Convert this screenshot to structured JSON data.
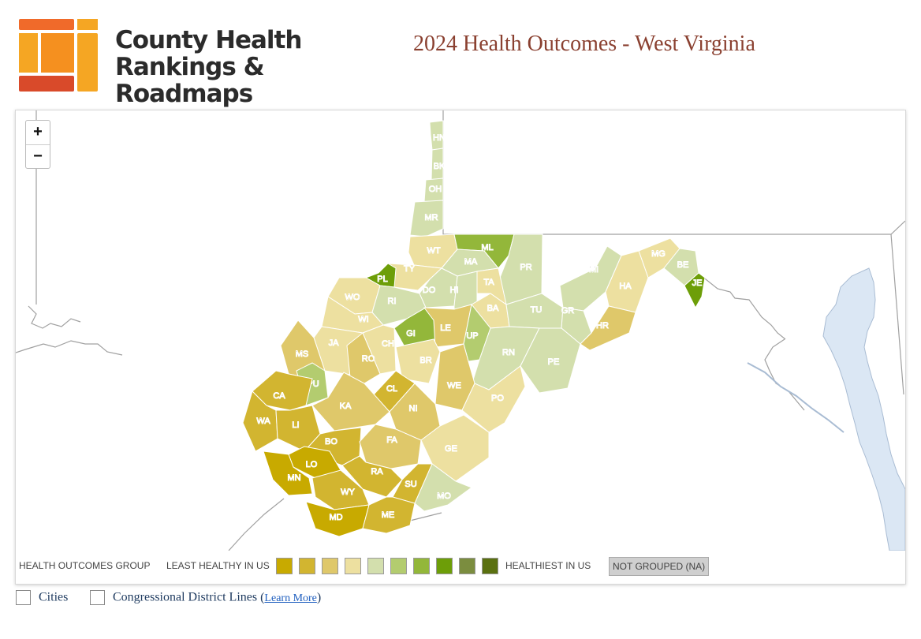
{
  "brand": {
    "name_line1": "County Health",
    "name_line2": "Rankings & Roadmaps"
  },
  "page": {
    "title": "2024 Health Outcomes - West Virginia"
  },
  "zoom": {
    "in_label": "+",
    "out_label": "−"
  },
  "legend": {
    "group_label": "HEALTH OUTCOMES GROUP",
    "least_label": "LEAST HEALTHY IN US",
    "healthiest_label": "HEALTHIEST IN US",
    "na_label": "NOT GROUPED (NA)",
    "colors": [
      "#c8aa00",
      "#d2b530",
      "#dfc86a",
      "#ede0a0",
      "#d3dfad",
      "#b3cc6f",
      "#93b73a",
      "#6d9e08",
      "#7b8d3f",
      "#5a7010"
    ]
  },
  "counties": {
    "HN": "HN",
    "BK": "BK",
    "OH": "OH",
    "MR": "MR",
    "WT": "WT",
    "ML": "ML",
    "MA": "MA",
    "PR": "PR",
    "TY": "TY",
    "PL": "PL",
    "DO": "DO",
    "HI": "HI",
    "TA": "TA",
    "MI": "MI",
    "MG": "MG",
    "BE": "BE",
    "JE": "JE",
    "HA": "HA",
    "WO": "WO",
    "RI": "RI",
    "WI": "WI",
    "BA": "BA",
    "TU": "TU",
    "GR": "GR",
    "HR": "HR",
    "GI": "GI",
    "LE": "LE",
    "UP": "UP",
    "JA": "JA",
    "CH": "CH",
    "MS": "MS",
    "RO": "RO",
    "BR": "BR",
    "RN": "RN",
    "PE": "PE",
    "PU": "PU",
    "CL": "CL",
    "WE": "WE",
    "CA": "CA",
    "KA": "KA",
    "NI": "NI",
    "PO": "PO",
    "WA": "WA",
    "LI": "LI",
    "BO": "BO",
    "FA": "FA",
    "GE": "GE",
    "LO": "LO",
    "MN": "MN",
    "RA": "RA",
    "SU": "SU",
    "WY": "WY",
    "MO": "MO",
    "MD": "MD",
    "ME": "ME"
  },
  "options": {
    "cities_label": "Cities",
    "cd_label": "Congressional District Lines",
    "learn_more": "Learn More"
  }
}
